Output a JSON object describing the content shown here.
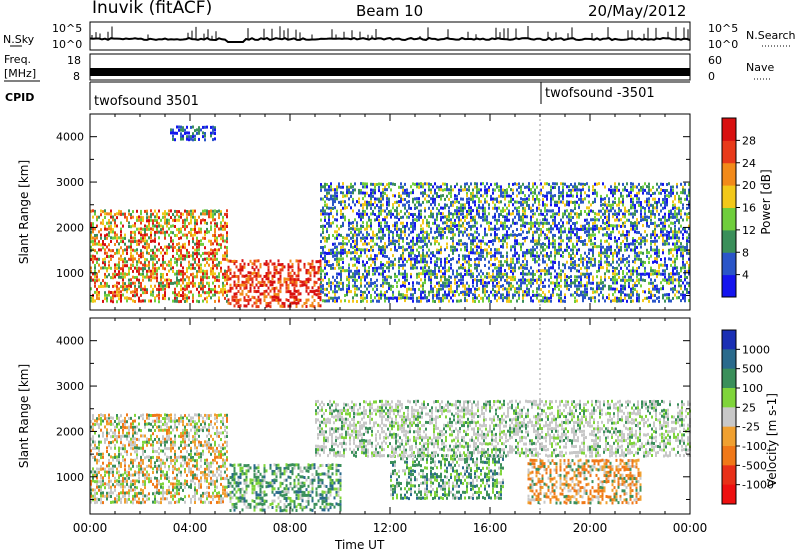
{
  "header": {
    "station": "Inuvik (fitACF)",
    "beam": "Beam 10",
    "date": "20/May/2012"
  },
  "strips": {
    "nsky_label": "N.Sky",
    "nsky_ticks": [
      "10^5",
      "10^0"
    ],
    "nsearch_label": "N.Search",
    "nsearch_ticks": [
      "10^5",
      "10^0"
    ],
    "freq_label": "Freq.",
    "freq_unit": "[MHz]",
    "freq_ticks": [
      "18",
      "8"
    ],
    "nave_label": "Nave",
    "nave_ticks": [
      "60",
      "0"
    ],
    "cpid_label": "CPID",
    "cpid_segments": [
      {
        "name": "twofsound 3501",
        "start_hour": 0
      },
      {
        "name": "twofsound -3501",
        "start_hour": 18.0
      }
    ]
  },
  "chart_data": [
    {
      "type": "heatmap",
      "title": "",
      "parameter": "Power",
      "ylabel": "Slant Range [km]",
      "xlabel": "",
      "ylim": [
        180,
        4500
      ],
      "xlim_hours": [
        0,
        24
      ],
      "yticks": [
        "1000",
        "2000",
        "3000",
        "4000"
      ],
      "colorbar_label": "Power [dB]",
      "colorbar_ticks": [
        "4",
        "8",
        "12",
        "16",
        "20",
        "24",
        "28"
      ],
      "colorbar_colors": [
        "#1515ee",
        "#2a55c8",
        "#3a8f5a",
        "#6fce3c",
        "#f2c81a",
        "#f28a1a",
        "#e83a1a",
        "#d81010"
      ],
      "scatter_regions": [
        {
          "t0": 0.0,
          "t1": 5.5,
          "r0": 300,
          "r1": 2400,
          "dominant": "orange-red"
        },
        {
          "t0": 5.5,
          "t1": 9.2,
          "r0": 200,
          "r1": 1300,
          "dominant": "red"
        },
        {
          "t0": 9.2,
          "t1": 24.0,
          "r0": 300,
          "r1": 3000,
          "dominant": "blue-green"
        },
        {
          "t0": 3.2,
          "t1": 5.0,
          "r0": 3900,
          "r1": 4250,
          "dominant": "blue"
        }
      ]
    },
    {
      "type": "heatmap",
      "title": "",
      "parameter": "Velocity",
      "ylabel": "Slant Range [km]",
      "xlabel": "Time UT",
      "ylim": [
        180,
        4500
      ],
      "xlim_hours": [
        0,
        24
      ],
      "yticks": [
        "1000",
        "2000",
        "3000",
        "4000"
      ],
      "xticks": [
        "00:00",
        "04:00",
        "08:00",
        "12:00",
        "16:00",
        "20:00",
        "00:00"
      ],
      "colorbar_label": "Velocity [m s-1]",
      "colorbar_ticks": [
        "1000",
        "500",
        "100",
        "25",
        "-25",
        "-100",
        "-500",
        "-1000"
      ],
      "colorbar_colors": [
        "#1a2fb4",
        "#2a6a8c",
        "#3a8f5a",
        "#7fd43a",
        "#c8c8c8",
        "#f0a030",
        "#f07818",
        "#e83018",
        "#ee1010"
      ],
      "scatter_regions": [
        {
          "t0": 0.0,
          "t1": 5.5,
          "r0": 400,
          "r1": 2400,
          "dominant": "grey-orange"
        },
        {
          "t0": 5.5,
          "t1": 10.0,
          "r0": 200,
          "r1": 1300,
          "dominant": "green"
        },
        {
          "t0": 12.0,
          "t1": 16.5,
          "r0": 500,
          "r1": 1500,
          "dominant": "green"
        },
        {
          "t0": 17.5,
          "t1": 22.0,
          "r0": 400,
          "r1": 1400,
          "dominant": "orange"
        },
        {
          "t0": 9.0,
          "t1": 24.0,
          "r0": 1400,
          "r1": 2700,
          "dominant": "grey"
        }
      ]
    }
  ]
}
